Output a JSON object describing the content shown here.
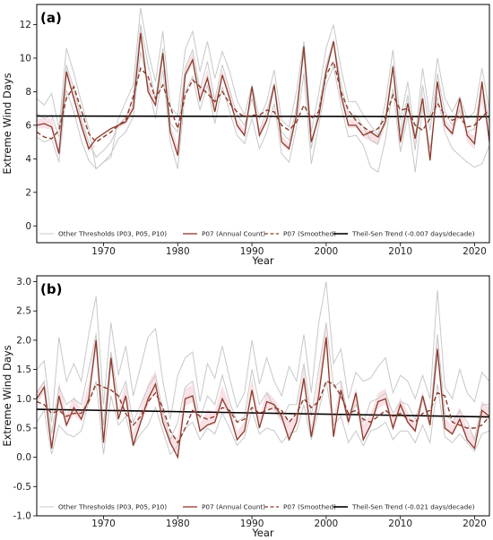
{
  "chart_data": [
    {
      "type": "line",
      "panel_label": "(a)",
      "xlabel": "Year",
      "ylabel": "Extreme Wind Days",
      "xlim": [
        1961,
        2022
      ],
      "ylim": [
        -1,
        13.2
      ],
      "x_ticks": [
        1970,
        1980,
        1990,
        2000,
        2010,
        2020
      ],
      "y_ticks": [
        0,
        2,
        4,
        6,
        8,
        10,
        12
      ],
      "grid": false,
      "legend_position": "bottom",
      "legend": [
        "Other Thresholds (P03, P05, P10)",
        "P07 (Annual Count)",
        "P07 (Smoothed)",
        "Theil-Sen Trend (-0.007 days/decade)"
      ],
      "colors": {
        "other": "#c8c8c8",
        "annual": "#8b3a2b",
        "smoothed": "#8b3a2b",
        "band": "#f4c9d0",
        "trend": "#000000"
      },
      "x_start": 1961,
      "series": [
        {
          "name": "Other Thresholds (P03, P05, P10)",
          "role": "upper",
          "values": [
            7.6,
            7.2,
            7.9,
            5.8,
            10.6,
            9.1,
            7.4,
            5.8,
            3.4,
            3.8,
            4.1,
            6.4,
            7.4,
            8.4,
            13.0,
            10.4,
            8.6,
            11.6,
            7.1,
            6.6,
            10.5,
            11.6,
            9.2,
            11.0,
            8.8,
            10.4,
            9.2,
            7.5,
            6.6,
            8.4,
            6.4,
            7.4,
            9.3,
            6.3,
            5.9,
            8.0,
            11.0,
            5.6,
            7.9,
            10.6,
            12.0,
            9.4,
            7.4,
            7.4,
            6.6,
            6.0,
            5.4,
            7.4,
            10.5,
            6.3,
            8.6,
            5.2,
            9.4,
            6.4,
            10.0,
            7.6,
            6.8,
            7.7,
            6.4,
            6.8,
            9.4,
            6.9
          ]
        },
        {
          "name": "Other Thresholds (P03, P05, P10)",
          "role": "mid",
          "values": [
            6.7,
            6.4,
            6.6,
            5.3,
            9.6,
            8.2,
            6.4,
            5.0,
            4.1,
            4.5,
            5.0,
            6.0,
            6.5,
            7.6,
            12.0,
            9.6,
            7.6,
            10.6,
            6.1,
            5.6,
            9.4,
            10.5,
            8.1,
            9.8,
            7.5,
            9.6,
            8.1,
            6.6,
            6.0,
            7.6,
            5.7,
            6.8,
            8.5,
            5.6,
            5.1,
            7.1,
            10.3,
            4.6,
            7.0,
            9.6,
            11.0,
            8.5,
            6.6,
            6.6,
            5.9,
            5.1,
            4.9,
            6.6,
            9.6,
            5.6,
            7.8,
            4.5,
            8.4,
            5.7,
            9.1,
            6.8,
            6.0,
            6.9,
            5.6,
            5.8,
            8.5,
            6.1
          ]
        },
        {
          "name": "Other Thresholds (P03, P05, P10)",
          "role": "lower",
          "values": [
            5.3,
            5.0,
            5.2,
            3.8,
            8.1,
            6.8,
            5.1,
            3.9,
            3.4,
            3.8,
            4.3,
            5.2,
            5.6,
            6.5,
            10.4,
            8.4,
            6.4,
            9.3,
            5.0,
            3.4,
            8.0,
            8.9,
            6.9,
            8.4,
            6.1,
            8.3,
            6.8,
            5.4,
            4.9,
            6.4,
            4.6,
            5.6,
            7.3,
            4.3,
            3.8,
            5.9,
            9.1,
            3.7,
            6.0,
            8.4,
            9.5,
            7.2,
            5.3,
            5.4,
            4.8,
            3.5,
            3.2,
            5.2,
            8.2,
            4.4,
            6.6,
            3.2,
            7.1,
            4.6,
            7.7,
            5.6,
            4.6,
            4.2,
            3.8,
            3.5,
            3.7,
            4.8
          ]
        },
        {
          "name": "P07 (Annual Count)",
          "role": "annual",
          "values": [
            6.0,
            6.1,
            5.9,
            4.3,
            9.2,
            7.6,
            6.0,
            4.6,
            5.2,
            5.5,
            5.8,
            6.0,
            6.2,
            7.0,
            11.5,
            8.0,
            7.2,
            10.3,
            5.6,
            4.2,
            9.0,
            9.9,
            7.5,
            8.8,
            6.8,
            9.0,
            7.6,
            6.0,
            5.4,
            8.3,
            5.4,
            6.3,
            8.4,
            5.0,
            4.6,
            6.6,
            10.7,
            5.0,
            6.5,
            9.2,
            11.0,
            7.8,
            6.0,
            6.0,
            5.4,
            5.6,
            5.3,
            6.2,
            9.5,
            5.0,
            7.3,
            5.2,
            7.6,
            3.9,
            8.6,
            6.0,
            5.5,
            7.6,
            5.4,
            4.9,
            8.6,
            5.0
          ]
        },
        {
          "name": "P07 (Smoothed)",
          "role": "smoothed",
          "values": [
            5.6,
            5.3,
            5.2,
            5.7,
            7.6,
            8.3,
            6.9,
            5.5,
            5.0,
            5.3,
            5.6,
            6.0,
            6.3,
            7.7,
            9.4,
            8.9,
            7.6,
            8.4,
            7.1,
            5.8,
            7.8,
            8.7,
            8.3,
            7.9,
            7.4,
            8.0,
            7.3,
            6.8,
            6.5,
            6.6,
            6.6,
            6.9,
            6.8,
            6.0,
            5.7,
            6.2,
            7.2,
            6.4,
            6.8,
            9.0,
            9.8,
            8.0,
            6.9,
            6.3,
            5.9,
            5.6,
            5.8,
            6.5,
            7.8,
            6.9,
            7.0,
            6.0,
            5.7,
            6.4,
            7.3,
            6.6,
            6.3,
            6.5,
            5.9,
            6.0,
            6.5,
            6.9
          ]
        },
        {
          "name": "Theil-Sen Trend (-0.007 days/decade)",
          "role": "trend",
          "x": [
            1961,
            2022
          ],
          "values": [
            6.55,
            6.51
          ]
        }
      ]
    },
    {
      "type": "line",
      "panel_label": "(b)",
      "xlabel": "Year",
      "ylabel": "Extreme Wind Days",
      "xlim": [
        1961,
        2022
      ],
      "ylim": [
        -1.0,
        3.1
      ],
      "x_ticks": [
        1970,
        1980,
        1990,
        2000,
        2010,
        2020
      ],
      "y_ticks": [
        -1.0,
        -0.5,
        0.0,
        0.5,
        1.0,
        1.5,
        2.0,
        2.5,
        3.0
      ],
      "grid": false,
      "legend_position": "bottom",
      "legend": [
        "Other Thresholds (P03, P05, P10)",
        "P07 (Annual Count)",
        "P07 (Smoothed)",
        "Theil-Sen Trend (-0.021 days/decade)"
      ],
      "colors": {
        "other": "#c8c8c8",
        "annual": "#8b3a2b",
        "smoothed": "#8b3a2b",
        "band": "#f4c9d0",
        "trend": "#000000"
      },
      "x_start": 1961,
      "series": [
        {
          "name": "Other Thresholds (P03, P05, P10)",
          "role": "upper",
          "values": [
            1.5,
            1.65,
            0.6,
            2.05,
            1.3,
            1.6,
            1.3,
            2.1,
            2.75,
            0.9,
            2.3,
            1.4,
            1.9,
            1.05,
            1.55,
            2.05,
            2.2,
            1.3,
            0.65,
            1.4,
            1.7,
            1.8,
            0.95,
            1.6,
            1.35,
            1.9,
            1.35,
            0.85,
            1.1,
            2.0,
            1.25,
            1.7,
            1.3,
            1.05,
            1.55,
            1.3,
            2.1,
            1.1,
            2.3,
            3.0,
            1.6,
            1.85,
            1.0,
            1.45,
            1.3,
            1.35,
            1.55,
            1.7,
            1.1,
            1.4,
            1.3,
            1.0,
            1.4,
            1.0,
            2.85,
            1.2,
            1.0,
            1.5,
            1.1,
            0.95,
            1.45,
            1.3
          ]
        },
        {
          "name": "Other Thresholds (P03, P05, P10)",
          "role": "mid",
          "values": [
            1.1,
            1.3,
            0.4,
            1.2,
            0.9,
            1.0,
            0.9,
            1.5,
            2.1,
            0.55,
            1.8,
            1.0,
            1.3,
            0.6,
            0.9,
            1.2,
            1.4,
            0.8,
            0.3,
            0.6,
            1.2,
            1.3,
            0.65,
            1.05,
            0.9,
            1.4,
            0.95,
            0.6,
            0.7,
            1.5,
            0.9,
            1.1,
            0.85,
            0.65,
            0.9,
            0.9,
            1.6,
            0.7,
            1.5,
            2.3,
            1.2,
            1.3,
            0.65,
            0.9,
            0.6,
            0.95,
            1.0,
            1.1,
            0.75,
            0.95,
            0.9,
            0.65,
            1.05,
            0.65,
            2.1,
            0.75,
            0.6,
            0.8,
            0.6,
            0.3,
            0.9,
            0.9
          ]
        },
        {
          "name": "Other Thresholds (P03, P05, P10)",
          "role": "lower",
          "values": [
            0.6,
            0.8,
            0.05,
            0.55,
            0.4,
            0.35,
            0.45,
            0.95,
            1.3,
            0.05,
            1.05,
            0.55,
            0.7,
            0.2,
            0.4,
            0.55,
            0.85,
            0.45,
            0.05,
            0.2,
            0.5,
            0.6,
            0.3,
            0.5,
            0.4,
            0.75,
            0.5,
            0.2,
            0.35,
            0.8,
            0.4,
            0.5,
            0.45,
            0.25,
            0.4,
            0.45,
            0.9,
            0.3,
            0.8,
            1.3,
            0.55,
            0.7,
            0.25,
            0.45,
            0.2,
            0.45,
            0.5,
            0.6,
            0.3,
            0.45,
            0.45,
            0.25,
            0.55,
            0.25,
            1.25,
            0.35,
            0.25,
            0.4,
            0.25,
            0.1,
            0.4,
            0.45
          ]
        },
        {
          "name": "P07 (Annual Count)",
          "role": "annual",
          "values": [
            1.0,
            1.2,
            0.15,
            1.05,
            0.55,
            0.85,
            0.65,
            1.0,
            2.0,
            0.25,
            1.7,
            0.65,
            1.05,
            0.2,
            0.6,
            1.0,
            1.25,
            0.6,
            0.25,
            0.0,
            1.0,
            1.05,
            0.45,
            0.55,
            0.6,
            1.0,
            0.75,
            0.3,
            0.45,
            1.15,
            0.5,
            0.95,
            0.9,
            0.7,
            0.3,
            0.6,
            1.35,
            0.35,
            1.05,
            2.05,
            0.35,
            1.15,
            0.6,
            1.1,
            0.3,
            0.55,
            0.95,
            1.0,
            0.5,
            0.9,
            0.6,
            0.45,
            1.05,
            0.55,
            1.85,
            0.5,
            0.4,
            0.65,
            0.3,
            0.15,
            0.8,
            0.7
          ]
        },
        {
          "name": "P07 (Smoothed)",
          "role": "smoothed",
          "values": [
            0.95,
            0.9,
            0.75,
            0.8,
            0.7,
            0.75,
            0.75,
            0.95,
            1.25,
            1.2,
            1.15,
            1.05,
            0.75,
            0.55,
            0.7,
            0.95,
            1.1,
            0.85,
            0.45,
            0.25,
            0.5,
            0.8,
            0.7,
            0.65,
            0.7,
            0.85,
            0.8,
            0.6,
            0.65,
            0.85,
            0.75,
            0.8,
            0.85,
            0.8,
            0.6,
            0.75,
            1.0,
            0.85,
            0.95,
            1.3,
            1.25,
            1.05,
            0.75,
            0.8,
            0.65,
            0.6,
            0.7,
            0.8,
            0.7,
            0.75,
            0.65,
            0.6,
            0.75,
            0.8,
            1.1,
            1.05,
            0.6,
            0.55,
            0.5,
            0.5,
            0.55,
            0.7
          ]
        },
        {
          "name": "Theil-Sen Trend (-0.021 days/decade)",
          "role": "trend",
          "x": [
            1961,
            2022
          ],
          "values": [
            0.82,
            0.69
          ]
        }
      ]
    }
  ]
}
